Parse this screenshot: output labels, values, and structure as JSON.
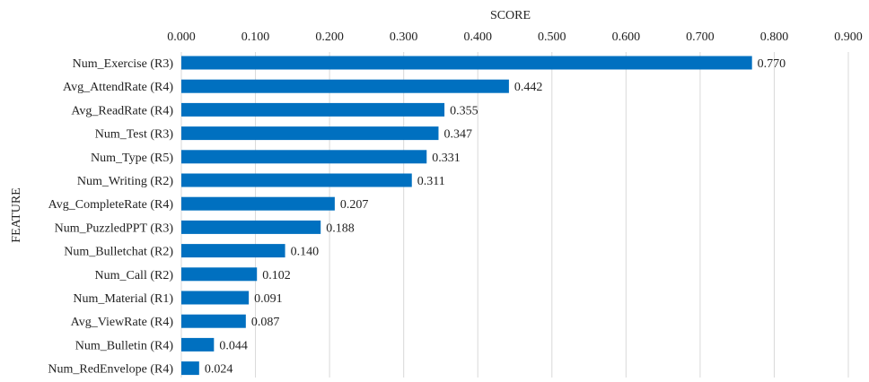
{
  "chart_data": {
    "type": "bar",
    "orientation": "horizontal",
    "xlabel": "SCORE",
    "ylabel": "FEATURE",
    "xlim": [
      0,
      0.9
    ],
    "x_ticks": [
      "0.000",
      "0.100",
      "0.200",
      "0.300",
      "0.400",
      "0.500",
      "0.600",
      "0.700",
      "0.800",
      "0.900"
    ],
    "x_axis_position": "top",
    "grid": true,
    "legend": "none",
    "bar_color": "#0070C0",
    "categories": [
      "Num_Exercise (R3)",
      "Avg_AttendRate (R4)",
      "Avg_ReadRate (R4)",
      "Num_Test (R3)",
      "Num_Type (R5)",
      "Num_Writing (R2)",
      "Avg_CompleteRate (R4)",
      "Num_PuzzledPPT (R3)",
      "Num_Bulletchat (R2)",
      "Num_Call (R2)",
      "Num_Material (R1)",
      "Avg_ViewRate (R4)",
      "Num_Bulletin (R4)",
      "Num_RedEnvelope (R4)"
    ],
    "values": [
      0.77,
      0.442,
      0.355,
      0.347,
      0.331,
      0.311,
      0.207,
      0.188,
      0.14,
      0.102,
      0.091,
      0.087,
      0.044,
      0.024
    ],
    "data_labels": [
      "0.770",
      "0.442",
      "0.355",
      "0.347",
      "0.331",
      "0.311",
      "0.207",
      "0.188",
      "0.140",
      "0.102",
      "0.091",
      "0.087",
      "0.044",
      "0.024"
    ]
  }
}
